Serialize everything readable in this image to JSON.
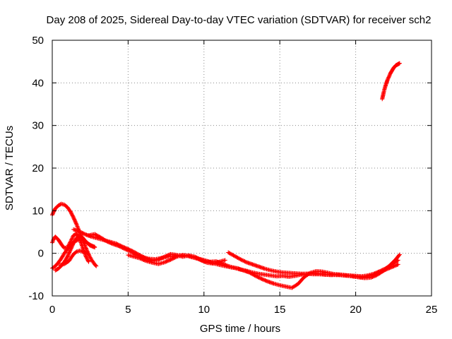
{
  "chart_data": {
    "type": "scatter",
    "title": "Day 208 of 2025, Sidereal Day-to-day VTEC variation (SDTVAR) for receiver sch2",
    "xlabel": "GPS time / hours",
    "ylabel": "SDTVAR / TECUs",
    "xlim": [
      0,
      25
    ],
    "ylim": [
      -10,
      50
    ],
    "grid": true,
    "x_ticks": [
      {
        "value": 0,
        "label": "0"
      },
      {
        "value": 5,
        "label": "5"
      },
      {
        "value": 10,
        "label": "10"
      },
      {
        "value": 15,
        "label": "15"
      },
      {
        "value": 20,
        "label": "20"
      },
      {
        "value": 25,
        "label": "25"
      }
    ],
    "y_ticks": [
      {
        "value": -10,
        "label": "-10"
      },
      {
        "value": 0,
        "label": "0"
      },
      {
        "value": 10,
        "label": "10"
      },
      {
        "value": 20,
        "label": "20"
      },
      {
        "value": 30,
        "label": "30"
      },
      {
        "value": 40,
        "label": "40"
      },
      {
        "value": 50,
        "label": "50"
      }
    ],
    "marker": "plus",
    "series": [
      {
        "name": "",
        "color": "#ff0000",
        "x": [
          0.0,
          0.1,
          0.2,
          0.4,
          0.6,
          0.8,
          1.0,
          1.2,
          1.4,
          1.6,
          1.8,
          2.0,
          2.2,
          2.4,
          2.6,
          2.8,
          2.9
        ],
        "y": [
          9.0,
          9.8,
          10.5,
          11.2,
          11.6,
          11.4,
          10.8,
          9.8,
          8.4,
          6.8,
          5.0,
          3.2,
          1.4,
          -0.3,
          -1.6,
          -2.6,
          -3.0
        ]
      },
      {
        "name": "",
        "color": "#ff0000",
        "x": [
          0.0,
          0.1,
          0.2,
          0.4,
          0.6,
          0.8,
          1.0,
          1.2,
          1.4,
          1.6,
          1.8,
          2.0,
          2.2,
          2.4,
          2.6,
          2.8
        ],
        "y": [
          -3.5,
          -3.3,
          -3.0,
          -2.2,
          -1.2,
          0.0,
          1.0,
          1.9,
          2.6,
          3.0,
          3.2,
          3.1,
          2.7,
          2.2,
          1.8,
          1.5
        ]
      },
      {
        "name": "",
        "color": "#ff0000",
        "x": [
          0.0,
          0.1,
          0.2,
          0.4,
          0.6,
          0.8,
          1.0,
          1.2,
          1.4,
          1.6,
          1.8,
          2.0,
          2.2,
          2.4
        ],
        "y": [
          2.5,
          3.4,
          3.9,
          3.2,
          2.1,
          1.2,
          1.4,
          2.7,
          4.2,
          4.6,
          3.4,
          1.4,
          -0.6,
          -2.0
        ]
      },
      {
        "name": "",
        "color": "#ff0000",
        "x": [
          0.2,
          0.4,
          0.6,
          0.8,
          1.0,
          1.2,
          1.4,
          1.6,
          1.8,
          2.0,
          2.2,
          2.5,
          2.8
        ],
        "y": [
          -4.0,
          -3.6,
          -2.9,
          -2.0,
          -0.8,
          0.8,
          2.4,
          3.6,
          4.1,
          3.7,
          2.8,
          1.8,
          1.4
        ]
      },
      {
        "name": "",
        "color": "#ff0000",
        "x": [
          0.5,
          0.8,
          1.1,
          1.4,
          1.6,
          1.8,
          2.1,
          2.4
        ],
        "y": [
          -2.8,
          -2.5,
          -1.8,
          -0.2,
          0.4,
          0.6,
          0.3,
          -0.2
        ]
      },
      {
        "name": "",
        "color": "#ff0000",
        "x": [
          1.4,
          1.8,
          2.2,
          2.6,
          3.0,
          3.4,
          3.8,
          4.2,
          4.6,
          5.0,
          5.4,
          5.8,
          6.2,
          6.6,
          7.0,
          7.4,
          7.8,
          8.2,
          8.6,
          9.0,
          9.4,
          9.8,
          10.2,
          10.6,
          11.0,
          11.4
        ],
        "y": [
          5.6,
          5.1,
          4.4,
          3.9,
          3.5,
          3.1,
          2.7,
          2.3,
          1.6,
          1.0,
          0.3,
          -0.5,
          -1.2,
          -1.8,
          -1.5,
          -0.8,
          -0.2,
          -0.4,
          -0.8,
          -0.5,
          -0.8,
          -1.6,
          -2.2,
          -2.4,
          -2.0,
          -1.6
        ]
      },
      {
        "name": "",
        "color": "#ff0000",
        "x": [
          2.4,
          2.8,
          3.2,
          3.6,
          4.0,
          4.4,
          4.8,
          5.2,
          5.6,
          6.0,
          6.4,
          6.8,
          7.2,
          7.6,
          8.0,
          8.4,
          8.8,
          9.2,
          9.6,
          10.0,
          10.4,
          10.8,
          11.2,
          11.6,
          12.0,
          12.4,
          12.8,
          13.2,
          13.6,
          14.0,
          14.4,
          14.8,
          15.2,
          15.6,
          16.0,
          16.4,
          16.8,
          17.2,
          17.6,
          18.0,
          18.4,
          18.8,
          19.2,
          19.6,
          20.0,
          20.4,
          20.8,
          21.2,
          21.6,
          22.0,
          22.4,
          22.8
        ],
        "y": [
          4.2,
          4.5,
          3.7,
          2.8,
          2.2,
          1.7,
          1.0,
          0.4,
          -0.5,
          -1.0,
          -1.3,
          -1.4,
          -1.1,
          -0.8,
          -0.6,
          -0.5,
          -0.5,
          -0.9,
          -1.3,
          -1.8,
          -2.0,
          -1.9,
          -2.4,
          -3.0,
          -3.4,
          -3.8,
          -4.1,
          -4.5,
          -4.8,
          -5.0,
          -5.2,
          -5.4,
          -5.3,
          -5.5,
          -5.3,
          -5.0,
          -4.8,
          -4.7,
          -4.8,
          -5.0,
          -5.1,
          -5.0,
          -5.2,
          -5.3,
          -5.5,
          -5.7,
          -5.4,
          -5.0,
          -4.4,
          -3.8,
          -3.2,
          -2.6
        ]
      },
      {
        "name": "",
        "color": "#ff0000",
        "x": [
          5.0,
          5.4,
          5.8,
          6.2,
          6.6,
          7.0,
          7.4,
          7.8,
          8.2,
          8.6,
          9.0,
          9.4,
          9.8,
          10.2,
          10.6,
          11.0,
          11.4,
          11.8,
          12.2,
          12.6,
          13.0,
          13.4,
          13.8,
          14.2,
          14.6,
          15.0,
          15.4,
          15.8,
          16.2,
          16.6,
          17.0,
          17.4,
          17.8,
          18.2,
          18.6,
          19.0,
          19.4,
          19.8,
          20.2,
          20.6,
          21.0,
          21.4,
          21.8,
          22.2,
          22.6,
          22.9
        ],
        "y": [
          -0.4,
          -0.8,
          -1.2,
          -1.8,
          -2.2,
          -2.5,
          -2.1,
          -1.5,
          -0.8,
          -0.4,
          -0.6,
          -1.0,
          -1.4,
          -1.8,
          -2.3,
          -2.7,
          -3.0,
          -3.3,
          -3.5,
          -4.0,
          -4.5,
          -5.3,
          -6.0,
          -6.6,
          -7.1,
          -7.5,
          -7.8,
          -8.1,
          -7.2,
          -5.6,
          -4.6,
          -4.2,
          -4.3,
          -4.6,
          -4.9,
          -5.0,
          -5.2,
          -5.4,
          -5.6,
          -5.8,
          -5.7,
          -5.1,
          -4.2,
          -3.0,
          -1.6,
          -0.3
        ]
      },
      {
        "name": "",
        "color": "#ff0000",
        "x": [
          11.6,
          12.0,
          12.4,
          12.8,
          13.2,
          13.6,
          14.0,
          14.4,
          14.8,
          15.2,
          15.6,
          16.0,
          16.4,
          16.8,
          17.2,
          17.6,
          18.0,
          18.4,
          18.8,
          19.2,
          19.6,
          20.0,
          20.4,
          20.8,
          21.2,
          21.6,
          22.0,
          22.4,
          22.8
        ],
        "y": [
          0.2,
          -0.6,
          -1.4,
          -2.1,
          -2.6,
          -3.1,
          -3.6,
          -4.0,
          -4.3,
          -4.5,
          -4.6,
          -4.7,
          -4.8,
          -4.8,
          -4.9,
          -4.9,
          -5.0,
          -5.0,
          -5.1,
          -5.1,
          -5.2,
          -5.3,
          -5.4,
          -5.2,
          -4.8,
          -4.2,
          -3.5,
          -2.6,
          -1.6
        ]
      },
      {
        "name": "",
        "color": "#ff0000",
        "x": [
          21.75,
          21.8,
          21.85,
          21.9,
          21.95,
          22.0,
          22.05,
          22.1,
          22.15,
          22.2,
          22.25,
          22.3,
          22.35,
          22.4,
          22.45,
          22.5,
          22.55,
          22.6,
          22.65,
          22.7,
          22.75,
          22.8,
          22.85,
          22.9
        ],
        "y": [
          36.2,
          37.0,
          37.8,
          38.5,
          39.1,
          39.7,
          40.2,
          40.7,
          41.1,
          41.5,
          41.9,
          42.3,
          42.6,
          42.9,
          43.2,
          43.5,
          43.7,
          43.9,
          44.1,
          44.2,
          44.3,
          44.4,
          44.5,
          44.6
        ]
      }
    ]
  }
}
